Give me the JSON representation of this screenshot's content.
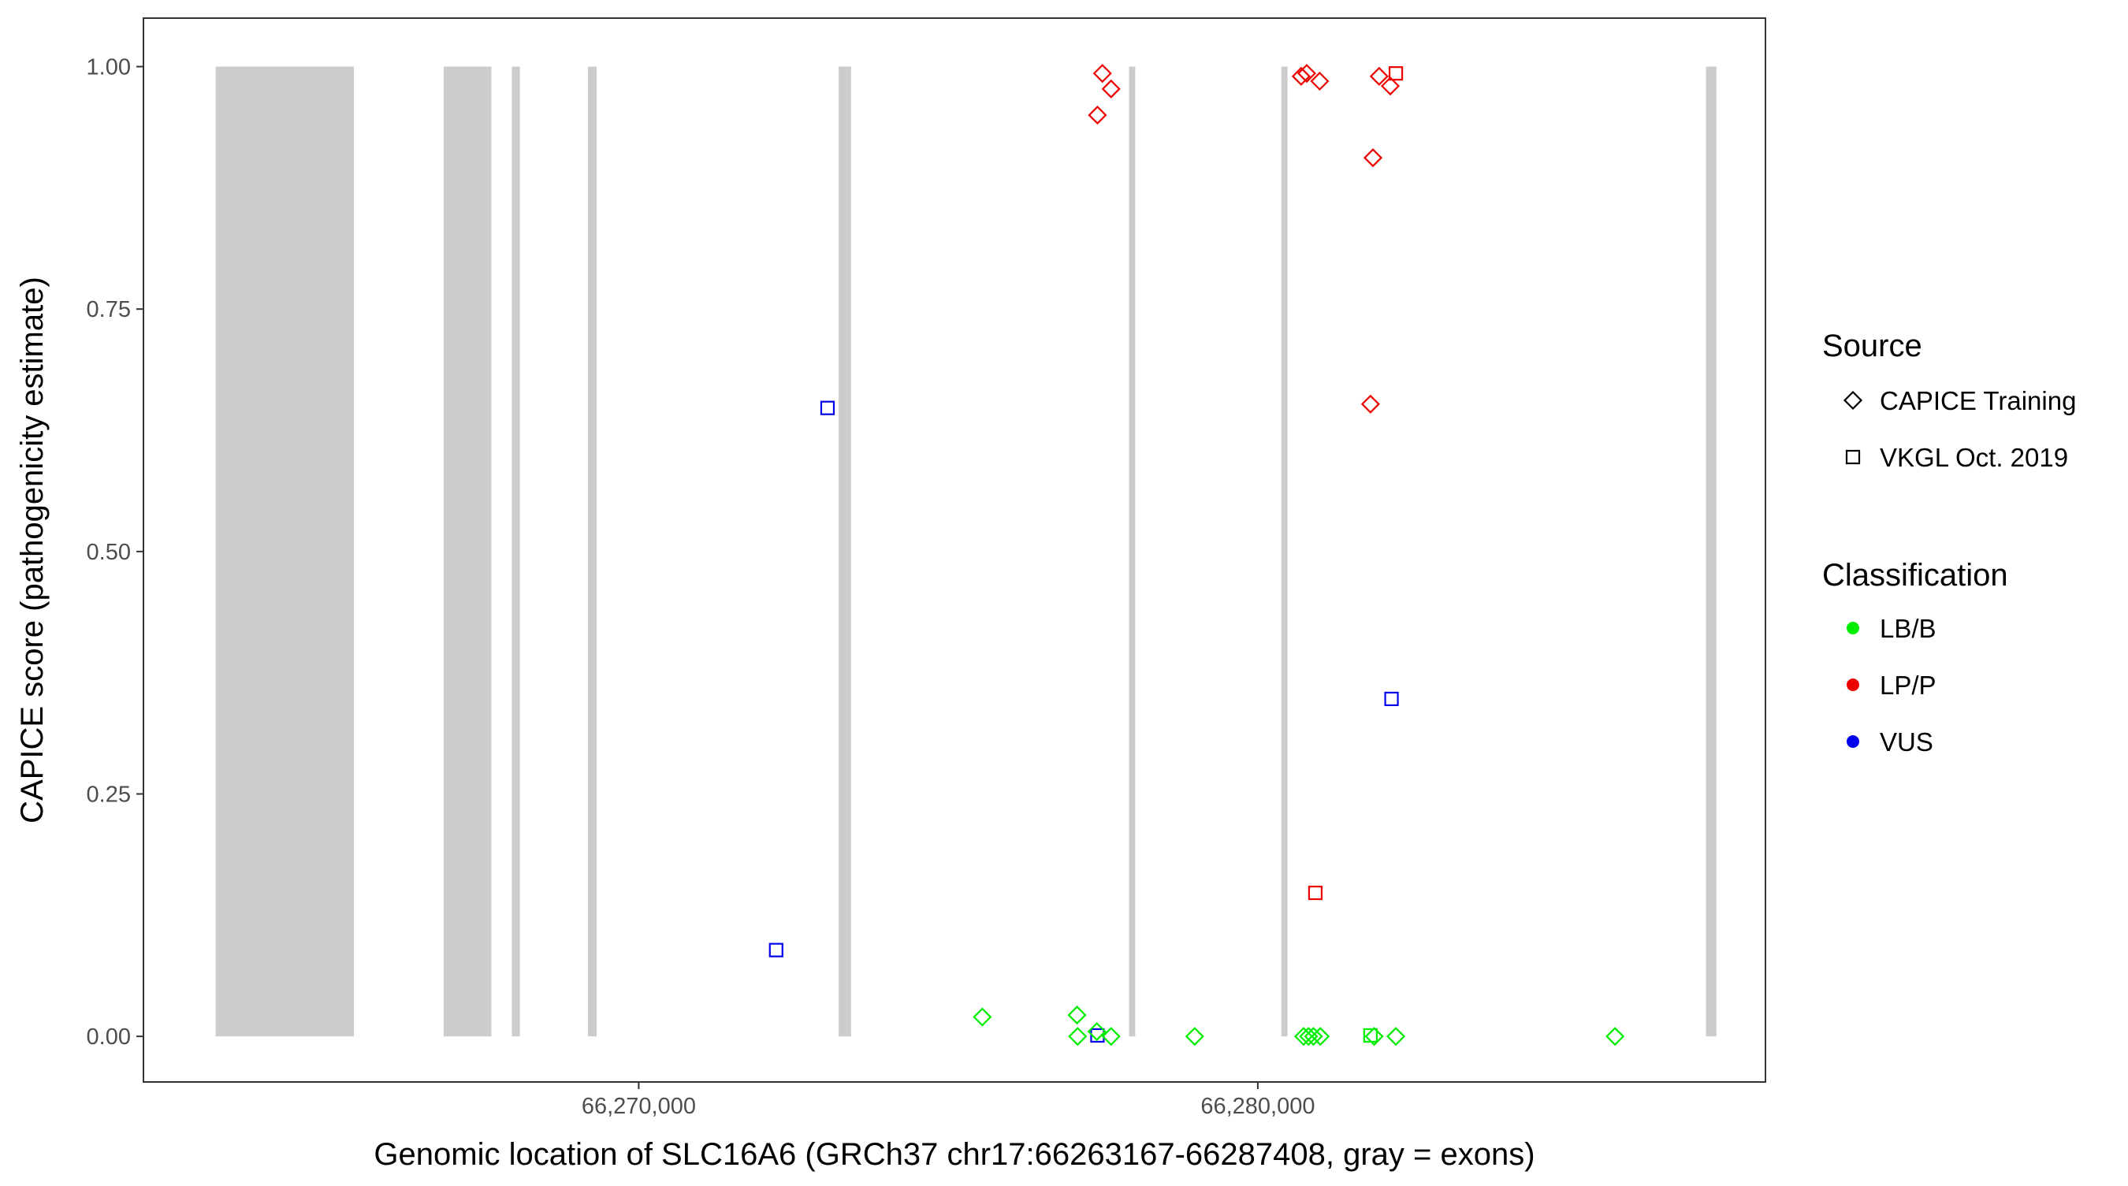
{
  "chart_data": {
    "type": "scatter",
    "xlabel": "Genomic location of SLC16A6 (GRCh37 chr17:66263167-66287408, gray = exons)",
    "ylabel": "CAPICE score (pathogenicity estimate)",
    "xlim": [
      66262000,
      66288200
    ],
    "ylim": [
      -0.047,
      1.05
    ],
    "x_ticks": [
      66270000,
      66280000
    ],
    "x_tick_labels": [
      "66,270,000",
      "66,280,000"
    ],
    "y_ticks": [
      0,
      0.25,
      0.5,
      0.75,
      1.0
    ],
    "y_tick_labels": [
      "0.00",
      "0.25",
      "0.50",
      "0.75",
      "1.00"
    ],
    "grid": false,
    "exon_color": "#cccccc",
    "exons": [
      [
        66263167,
        66265400
      ],
      [
        66266850,
        66267620
      ],
      [
        66267950,
        66268080
      ],
      [
        66269180,
        66269320
      ],
      [
        66273230,
        66273430
      ],
      [
        66277920,
        66278020
      ],
      [
        66280380,
        66280480
      ],
      [
        66287240,
        66287408
      ]
    ],
    "legend_placement": "right",
    "legend": {
      "source": {
        "title": "Source",
        "items": [
          {
            "label": "CAPICE Training",
            "shape": "diamond"
          },
          {
            "label": "VKGL Oct. 2019",
            "shape": "square"
          }
        ]
      },
      "classification": {
        "title": "Classification",
        "items": [
          {
            "label": "LB/B",
            "color": "#00ee00"
          },
          {
            "label": "LP/P",
            "color": "#ee0000"
          },
          {
            "label": "VUS",
            "color": "#0000ee"
          }
        ]
      }
    },
    "points": [
      {
        "x": 66277490,
        "y": 0.993,
        "source": "CAPICE Training",
        "classification": "LP/P"
      },
      {
        "x": 66277630,
        "y": 0.977,
        "source": "CAPICE Training",
        "classification": "LP/P"
      },
      {
        "x": 66277410,
        "y": 0.95,
        "source": "CAPICE Training",
        "classification": "LP/P"
      },
      {
        "x": 66280700,
        "y": 0.99,
        "source": "CAPICE Training",
        "classification": "LP/P"
      },
      {
        "x": 66280790,
        "y": 0.993,
        "source": "CAPICE Training",
        "classification": "LP/P"
      },
      {
        "x": 66281000,
        "y": 0.985,
        "source": "CAPICE Training",
        "classification": "LP/P"
      },
      {
        "x": 66281960,
        "y": 0.99,
        "source": "CAPICE Training",
        "classification": "LP/P"
      },
      {
        "x": 66282140,
        "y": 0.98,
        "source": "CAPICE Training",
        "classification": "LP/P"
      },
      {
        "x": 66281860,
        "y": 0.906,
        "source": "CAPICE Training",
        "classification": "LP/P"
      },
      {
        "x": 66281820,
        "y": 0.652,
        "source": "CAPICE Training",
        "classification": "LP/P"
      },
      {
        "x": 66282230,
        "y": 0.993,
        "source": "VKGL Oct. 2019",
        "classification": "LP/P"
      },
      {
        "x": 66280930,
        "y": 0.148,
        "source": "VKGL Oct. 2019",
        "classification": "LP/P"
      },
      {
        "x": 66273050,
        "y": 0.648,
        "source": "VKGL Oct. 2019",
        "classification": "VUS"
      },
      {
        "x": 66272220,
        "y": 0.089,
        "source": "VKGL Oct. 2019",
        "classification": "VUS"
      },
      {
        "x": 66282160,
        "y": 0.348,
        "source": "VKGL Oct. 2019",
        "classification": "VUS"
      },
      {
        "x": 66277410,
        "y": 0.001,
        "source": "VKGL Oct. 2019",
        "classification": "VUS"
      },
      {
        "x": 66275550,
        "y": 0.02,
        "source": "CAPICE Training",
        "classification": "LB/B"
      },
      {
        "x": 66277080,
        "y": 0.022,
        "source": "CAPICE Training",
        "classification": "LB/B"
      },
      {
        "x": 66277090,
        "y": 0.0,
        "source": "CAPICE Training",
        "classification": "LB/B"
      },
      {
        "x": 66277400,
        "y": 0.005,
        "source": "CAPICE Training",
        "classification": "LB/B"
      },
      {
        "x": 66277630,
        "y": 0.0,
        "source": "CAPICE Training",
        "classification": "LB/B"
      },
      {
        "x": 66278980,
        "y": 0.0,
        "source": "CAPICE Training",
        "classification": "LB/B"
      },
      {
        "x": 66280740,
        "y": 0.0,
        "source": "CAPICE Training",
        "classification": "LB/B"
      },
      {
        "x": 66280820,
        "y": 0.0,
        "source": "CAPICE Training",
        "classification": "LB/B"
      },
      {
        "x": 66280900,
        "y": 0.0,
        "source": "CAPICE Training",
        "classification": "LB/B"
      },
      {
        "x": 66281010,
        "y": 0.0,
        "source": "CAPICE Training",
        "classification": "LB/B"
      },
      {
        "x": 66281880,
        "y": 0.0,
        "source": "CAPICE Training",
        "classification": "LB/B"
      },
      {
        "x": 66282230,
        "y": 0.0,
        "source": "CAPICE Training",
        "classification": "LB/B"
      },
      {
        "x": 66285770,
        "y": 0.0,
        "source": "CAPICE Training",
        "classification": "LB/B"
      },
      {
        "x": 66281820,
        "y": 0.001,
        "source": "VKGL Oct. 2019",
        "classification": "LB/B"
      }
    ]
  }
}
